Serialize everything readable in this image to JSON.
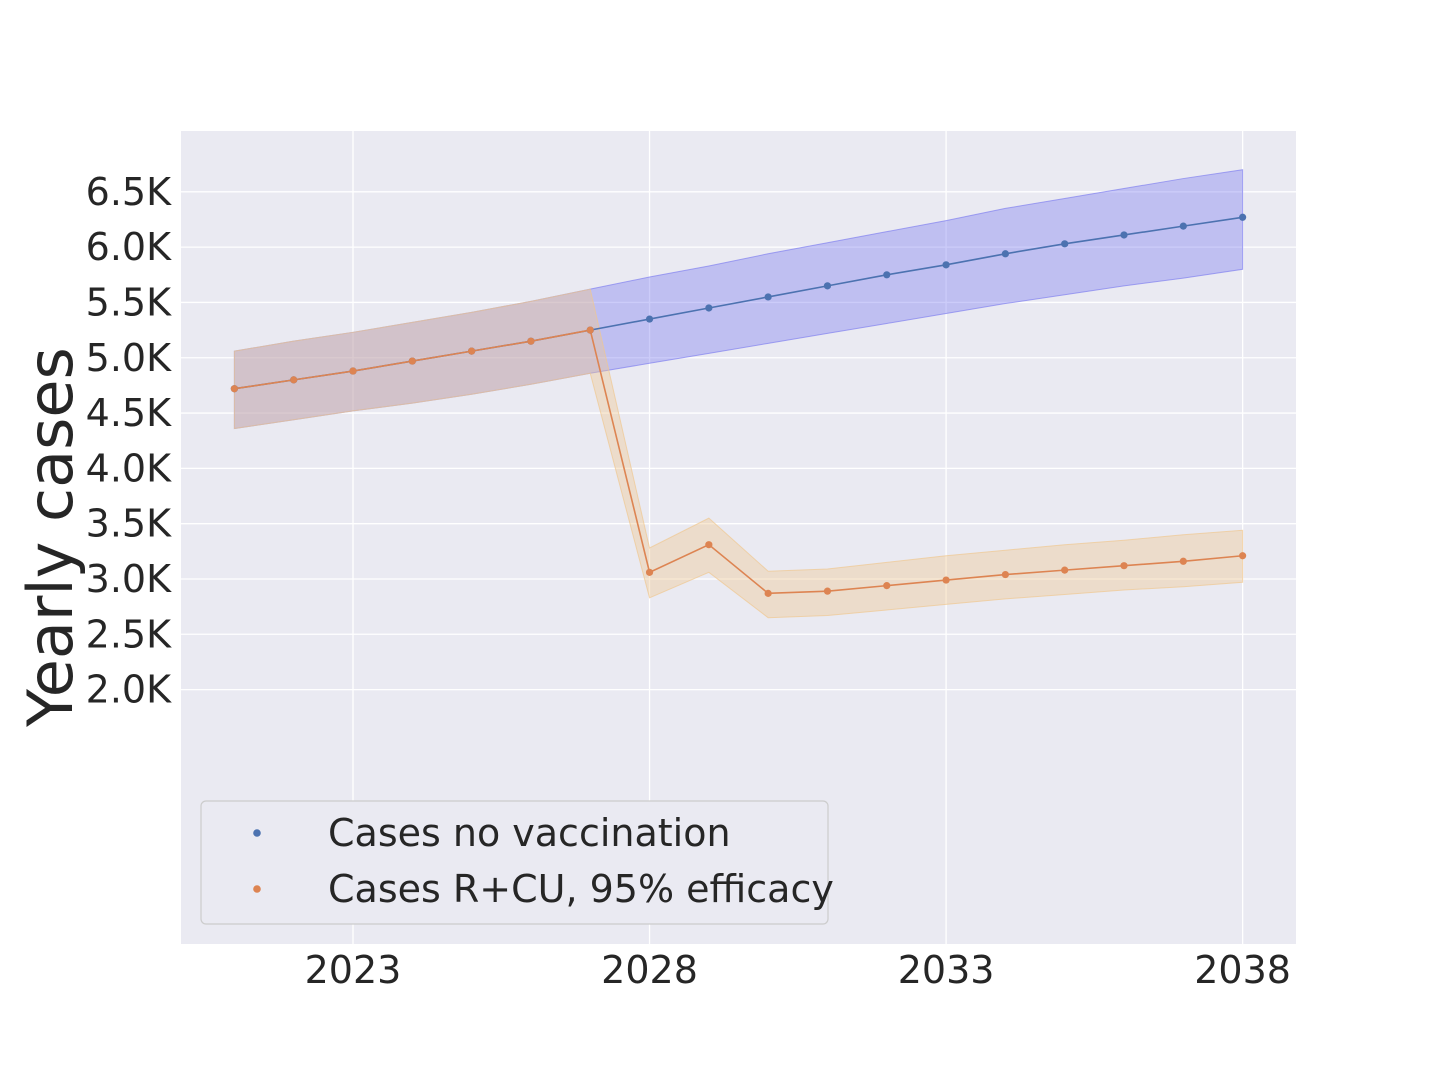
{
  "chart_data": {
    "type": "line",
    "title": "",
    "xlabel": "",
    "ylabel": "Yearly cases",
    "xlim": [
      2020.1,
      2038.9
    ],
    "ylim": [
      -300,
      7050
    ],
    "x_ticks": [
      2023,
      2028,
      2033,
      2038
    ],
    "x_tick_labels": [
      "2023",
      "2028",
      "2033",
      "2038"
    ],
    "y_ticks": [
      2000,
      2500,
      3000,
      3500,
      4000,
      4500,
      5000,
      5500,
      6000,
      6500
    ],
    "y_tick_labels": [
      "2.0K",
      "2.5K",
      "3.0K",
      "3.5K",
      "4.0K",
      "4.5K",
      "5.0K",
      "5.5K",
      "6.0K",
      "6.5K"
    ],
    "grid": true,
    "legend_position": "lower-left",
    "x": [
      2021,
      2022,
      2023,
      2024,
      2025,
      2026,
      2027,
      2028,
      2029,
      2030,
      2031,
      2032,
      2033,
      2034,
      2035,
      2036,
      2037,
      2038
    ],
    "series": [
      {
        "name": "Cases no vaccination",
        "color": "#4c72b0",
        "band_color": "#8080f0",
        "values": [
          4720,
          4800,
          4880,
          4970,
          5060,
          5150,
          5250,
          5350,
          5450,
          5550,
          5650,
          5750,
          5840,
          5940,
          6030,
          6110,
          6190,
          6270
        ],
        "lower": [
          4360,
          4440,
          4520,
          4590,
          4670,
          4760,
          4860,
          4950,
          5040,
          5130,
          5220,
          5310,
          5400,
          5490,
          5570,
          5650,
          5720,
          5800
        ],
        "upper": [
          5060,
          5150,
          5230,
          5320,
          5410,
          5510,
          5620,
          5730,
          5830,
          5940,
          6040,
          6140,
          6240,
          6350,
          6440,
          6530,
          6620,
          6700
        ]
      },
      {
        "name": "Cases R+CU, 95% efficacy",
        "color": "#dd8452",
        "band_color": "#f0c890",
        "values": [
          4720,
          4800,
          4880,
          4970,
          5060,
          5150,
          5250,
          3060,
          3310,
          2870,
          2890,
          2940,
          2990,
          3040,
          3080,
          3120,
          3160,
          3210
        ],
        "lower": [
          4360,
          4440,
          4520,
          4590,
          4670,
          4760,
          4860,
          2830,
          3060,
          2650,
          2670,
          2720,
          2770,
          2820,
          2860,
          2900,
          2930,
          2970
        ],
        "upper": [
          5060,
          5150,
          5230,
          5320,
          5410,
          5510,
          5620,
          3280,
          3550,
          3070,
          3090,
          3150,
          3210,
          3260,
          3310,
          3350,
          3400,
          3440
        ]
      }
    ]
  }
}
